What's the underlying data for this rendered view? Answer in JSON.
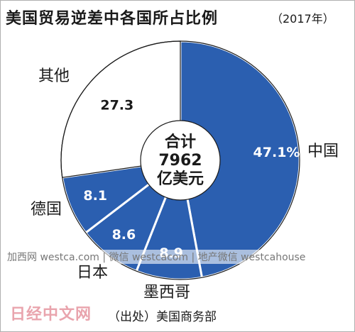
{
  "title": "美国贸易逆差中各国所占比例",
  "title_year": "（2017年）",
  "center": {
    "line1": "合计",
    "line2": "7962",
    "line3": "亿美元"
  },
  "watermark": "加西网 westca.com | 微信 westcacom | 地产微信 westcahouse",
  "logo": "日经中文网",
  "source": "（出处）美国商务部",
  "colors": {
    "blue": "#2b5fb0",
    "white": "#ffffff",
    "edge": "#1a1a1a"
  },
  "chart_data": {
    "type": "pie",
    "style": "donut",
    "unit": "%",
    "start": "12 o'clock",
    "direction": "clockwise",
    "slices": [
      {
        "label": "中国",
        "value": 47.1,
        "display": "47.1%"
      },
      {
        "label": "墨西哥",
        "value": 8.9,
        "display": "8.9"
      },
      {
        "label": "日本",
        "value": 8.6,
        "display": "8.6"
      },
      {
        "label": "德国",
        "value": 8.1,
        "display": "8.1"
      },
      {
        "label": "其他",
        "value": 27.3,
        "display": "27.3"
      }
    ]
  }
}
